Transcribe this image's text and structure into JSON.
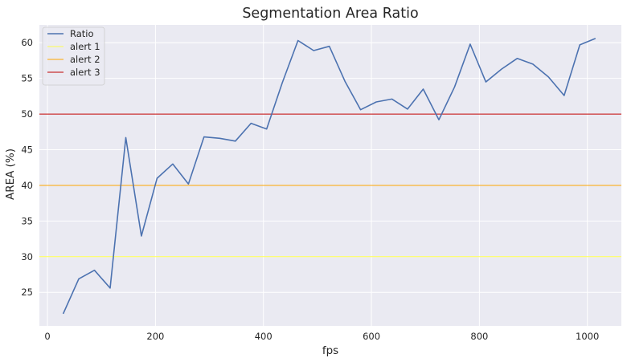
{
  "chart_data": {
    "type": "line",
    "title": "Segmentation Area Ratio",
    "xlabel": "fps",
    "ylabel": "AREA (%)",
    "xlim": [
      -15,
      1063
    ],
    "ylim": [
      20.3,
      62.5
    ],
    "xticks": [
      0,
      200,
      400,
      600,
      800,
      1000
    ],
    "yticks": [
      25,
      30,
      35,
      40,
      45,
      50,
      55,
      60
    ],
    "grid": true,
    "background": "#eaeaf2",
    "legend_position": "top-left",
    "series": [
      {
        "name": "Ratio",
        "color": "#4c72b0",
        "x": [
          29,
          58,
          87,
          116,
          145,
          174,
          203,
          232,
          261,
          290,
          319,
          348,
          377,
          406,
          435,
          464,
          493,
          522,
          551,
          580,
          609,
          638,
          667,
          696,
          725,
          754,
          783,
          812,
          841,
          870,
          899,
          928,
          957,
          986,
          1015
        ],
        "y": [
          22.0,
          26.9,
          28.1,
          25.6,
          46.7,
          32.9,
          41.0,
          43.0,
          40.2,
          46.8,
          46.6,
          46.2,
          48.7,
          47.9,
          54.4,
          60.3,
          58.9,
          59.5,
          54.6,
          50.6,
          51.7,
          52.1,
          50.7,
          53.5,
          49.2,
          53.8,
          59.8,
          54.5,
          56.3,
          57.8,
          57.0,
          55.2,
          52.6,
          59.7,
          60.6
        ]
      }
    ],
    "hlines": [
      {
        "name": "alert 1",
        "y": 30,
        "color": "#ffff4d"
      },
      {
        "name": "alert 2",
        "y": 40,
        "color": "#ffa500"
      },
      {
        "name": "alert 3",
        "y": 50,
        "color": "#c00000"
      }
    ]
  }
}
